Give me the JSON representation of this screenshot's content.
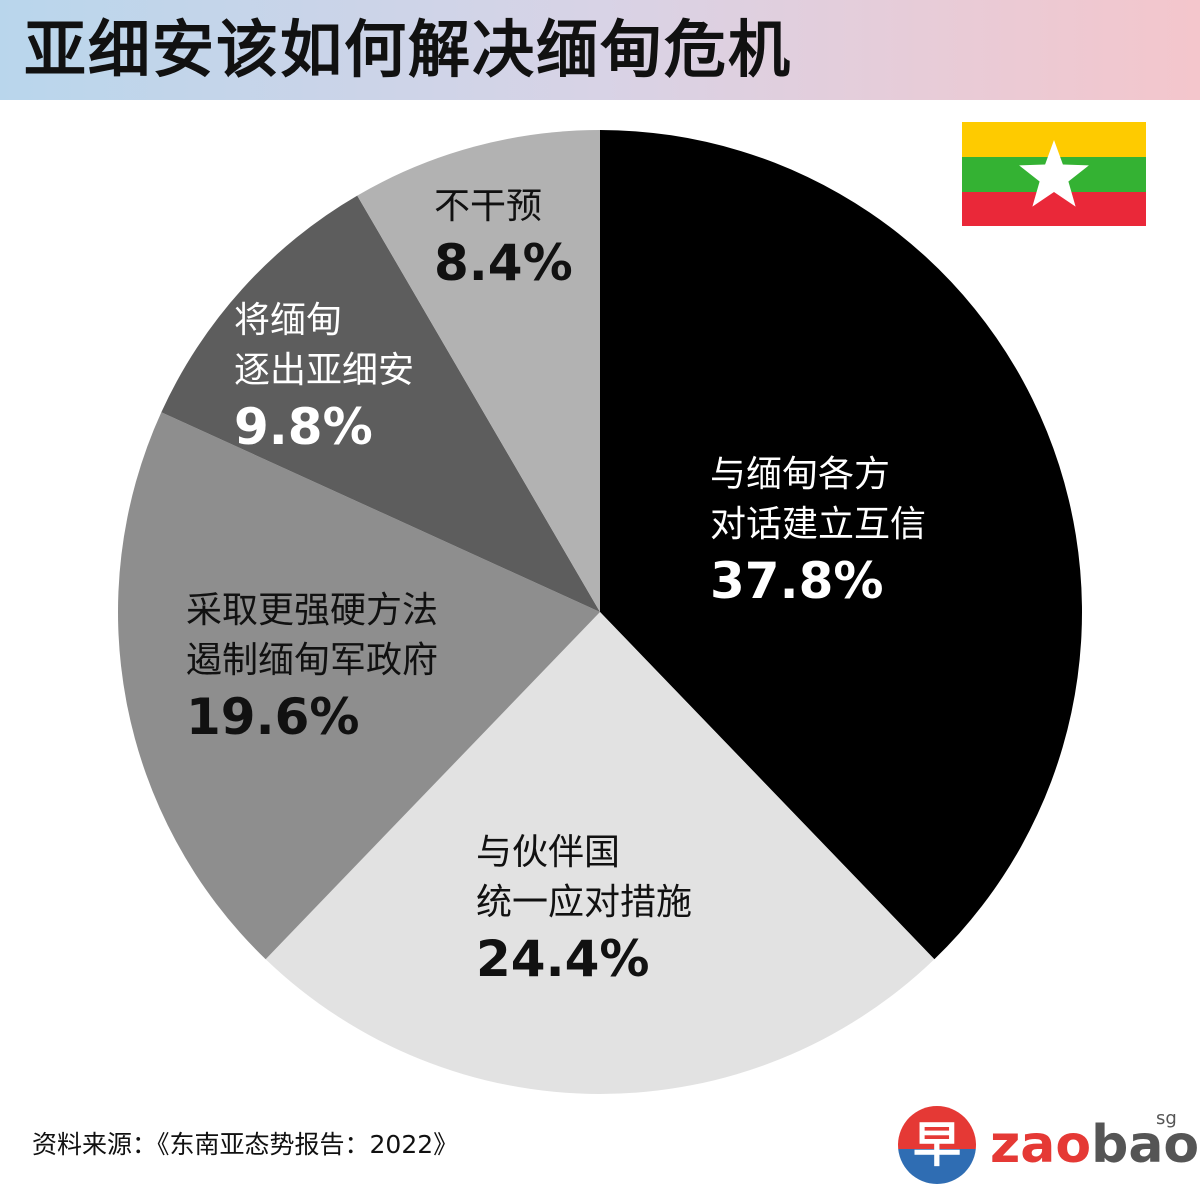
{
  "title": "亚细安该如何解决缅甸危机",
  "source": "资料来源：《东南亚态势报告：2022》",
  "logo": {
    "char": "早",
    "word_a": "zao",
    "word_b": "bao",
    "sup": "sg"
  },
  "colors": {
    "flag_yellow": "#fecb00",
    "flag_green": "#34b233",
    "flag_red": "#ea2839",
    "flag_star": "#ffffff"
  },
  "chart_data": {
    "type": "pie",
    "title": "亚细安该如何解决缅甸危机",
    "start": "12 o'clock",
    "direction": "clockwise",
    "slices": [
      {
        "label_lines": [
          "与缅甸各方",
          "对话建立互信"
        ],
        "value": 37.8,
        "display": "37.8%",
        "color": "#000000",
        "text_color": "#ffffff"
      },
      {
        "label_lines": [
          "与伙伴国",
          "统一应对措施"
        ],
        "value": 24.4,
        "display": "24.4%",
        "color": "#e2e2e2",
        "text_color": "#111111"
      },
      {
        "label_lines": [
          "采取更强硬方法",
          "遏制缅甸军政府"
        ],
        "value": 19.6,
        "display": "19.6%",
        "color": "#8e8e8e",
        "text_color": "#111111"
      },
      {
        "label_lines": [
          "将缅甸",
          "逐出亚细安"
        ],
        "value": 9.8,
        "display": "9.8%",
        "color": "#5d5d5d",
        "text_color": "#ffffff"
      },
      {
        "label_lines": [
          "不干预"
        ],
        "value": 8.4,
        "display": "8.4%",
        "color": "#b2b2b2",
        "text_color": "#111111"
      }
    ]
  }
}
